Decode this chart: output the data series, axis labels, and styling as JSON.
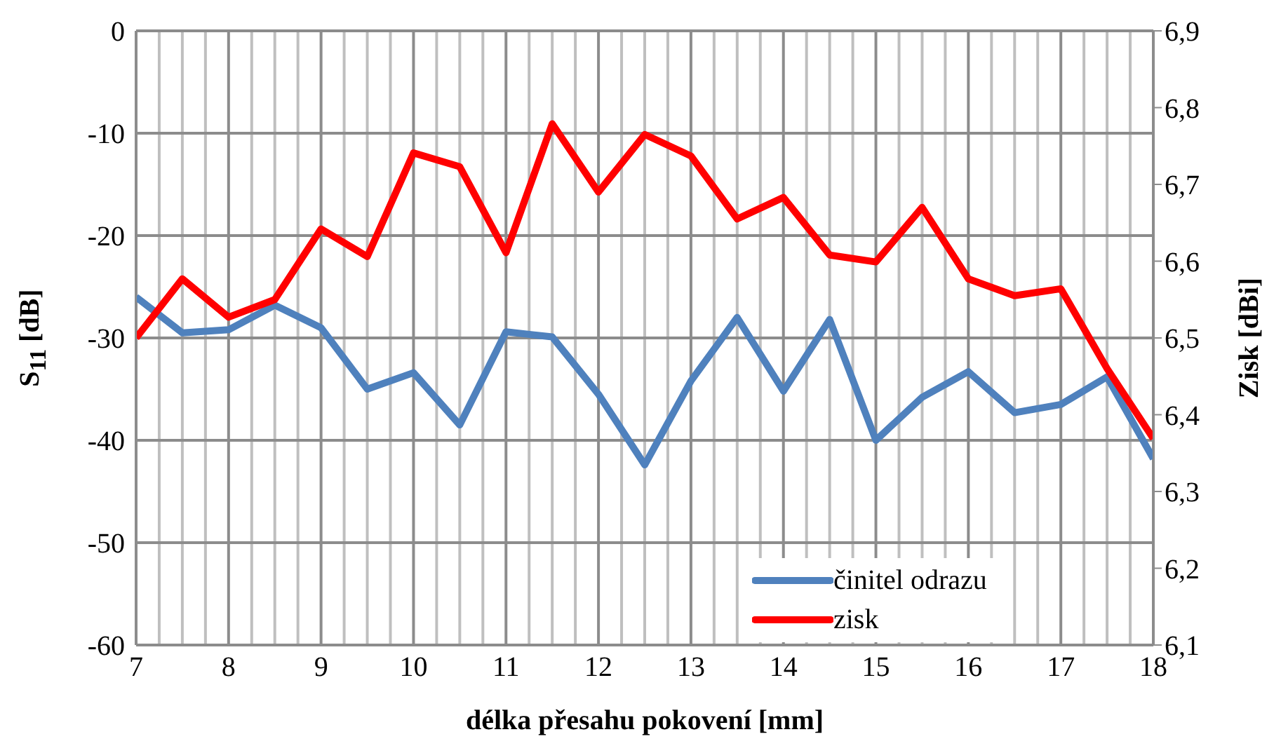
{
  "chart_data": {
    "type": "line",
    "xlabel": "délka přesahu pokovení [mm]",
    "ylabel": "S$_{11}$ [dB]",
    "y2label": "Zisk [dBi]",
    "x": [
      7,
      7.5,
      8,
      8.5,
      9,
      9.5,
      10,
      10.5,
      11,
      11.5,
      12,
      12.5,
      13,
      13.5,
      14,
      14.5,
      15,
      15.5,
      16,
      16.5,
      17,
      17.5,
      18
    ],
    "series": [
      {
        "name": "činitel odrazu",
        "color": "#4f81bd",
        "values": [
          -26,
          -29.5,
          -29.2,
          -26.8,
          -29,
          -35,
          -33.4,
          -38.5,
          -29.4,
          -29.9,
          -35.5,
          -42.4,
          -34.2,
          -28,
          -35.2,
          -28.2,
          -40,
          -35.8,
          -33.3,
          -37.3,
          -36.5,
          -33.8,
          -41.8
        ]
      },
      {
        "name": "zisk",
        "color": "#ff0000",
        "axis": "y2",
        "values": [
          6.5,
          6.577,
          6.527,
          6.55,
          6.642,
          6.606,
          6.741,
          6.723,
          6.611,
          6.779,
          6.69,
          6.765,
          6.737,
          6.655,
          6.683,
          6.608,
          6.599,
          6.67,
          6.577,
          6.555,
          6.564,
          6.46,
          6.369
        ]
      }
    ],
    "xlim": [
      7,
      18
    ],
    "xticks": [
      7,
      {
        "value": 7.25,
        "label": null
      },
      {
        "value": 7.5,
        "label": null
      },
      {
        "value": 7.75,
        "label": null
      },
      8,
      {
        "value": 8.25,
        "label": null
      },
      {
        "value": 8.5,
        "label": null
      },
      {
        "value": 8.75,
        "label": null
      },
      9,
      {
        "value": 9.25,
        "label": null
      },
      {
        "value": 9.5,
        "label": null
      },
      {
        "value": 9.75,
        "label": null
      },
      10,
      {
        "value": 10.25,
        "label": null
      },
      {
        "value": 10.5,
        "label": null
      },
      {
        "value": 10.75,
        "label": null
      },
      11,
      {
        "value": 11.25,
        "label": null
      },
      {
        "value": 11.5,
        "label": null
      },
      {
        "value": 11.75,
        "label": null
      },
      12,
      {
        "value": 12.25,
        "label": null
      },
      {
        "value": 12.5,
        "label": null
      },
      {
        "value": 12.75,
        "label": null
      },
      13,
      {
        "value": 13.25,
        "label": null
      },
      {
        "value": 13.5,
        "label": null
      },
      {
        "value": 13.75,
        "label": null
      },
      14,
      {
        "value": 14.25,
        "label": null
      },
      {
        "value": 14.5,
        "label": null
      },
      {
        "value": 14.75,
        "label": null
      },
      15,
      {
        "value": 15.25,
        "label": null
      },
      {
        "value": 15.5,
        "label": null
      },
      {
        "value": 15.75,
        "label": null
      },
      16,
      {
        "value": 16.25,
        "label": null
      },
      {
        "value": 16.5,
        "label": null
      },
      {
        "value": 16.75,
        "label": null
      },
      17,
      {
        "value": 17.25,
        "label": null
      },
      {
        "value": 17.5,
        "label": null
      },
      {
        "value": 17.75,
        "label": null
      },
      18
    ],
    "ylim": [
      -60,
      0
    ],
    "yticks": [
      -60,
      -50,
      -40,
      -30,
      -20,
      -10,
      0
    ],
    "y2lim": [
      6.1,
      6.9
    ],
    "y2ticks": [
      {
        "value": 6.1,
        "label": "6,1"
      },
      {
        "value": 6.2,
        "label": "6,2"
      },
      {
        "value": 6.3,
        "label": "6,3"
      },
      {
        "value": 6.4,
        "label": "6,4"
      },
      {
        "value": 6.5,
        "label": "6,5"
      },
      {
        "value": 6.6,
        "label": "6,6"
      },
      {
        "value": 6.7,
        "label": "6,7"
      },
      {
        "value": 6.8,
        "label": "6,8"
      },
      {
        "value": 6.9,
        "label": "6,9"
      }
    ],
    "grid": true,
    "legend": "bottom right",
    "marker": "none",
    "line_style": "solid"
  }
}
